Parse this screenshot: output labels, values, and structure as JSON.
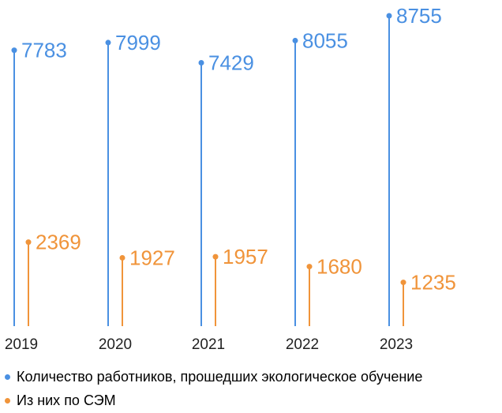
{
  "chart_data": {
    "type": "bar",
    "categories": [
      "2019",
      "2020",
      "2021",
      "2022",
      "2023"
    ],
    "series": [
      {
        "name": "Количество работников, прошедших экологическое обучение",
        "values": [
          7783,
          7999,
          7429,
          8055,
          8755
        ],
        "color": "#4a90e2"
      },
      {
        "name": "Из них по СЭМ",
        "values": [
          2369,
          1927,
          1957,
          1680,
          1235
        ],
        "color": "#f0943a"
      }
    ],
    "ylim": [
      0,
      8755
    ],
    "grid": false,
    "legend_position": "bottom-left",
    "axis_text_color": "#222222"
  }
}
